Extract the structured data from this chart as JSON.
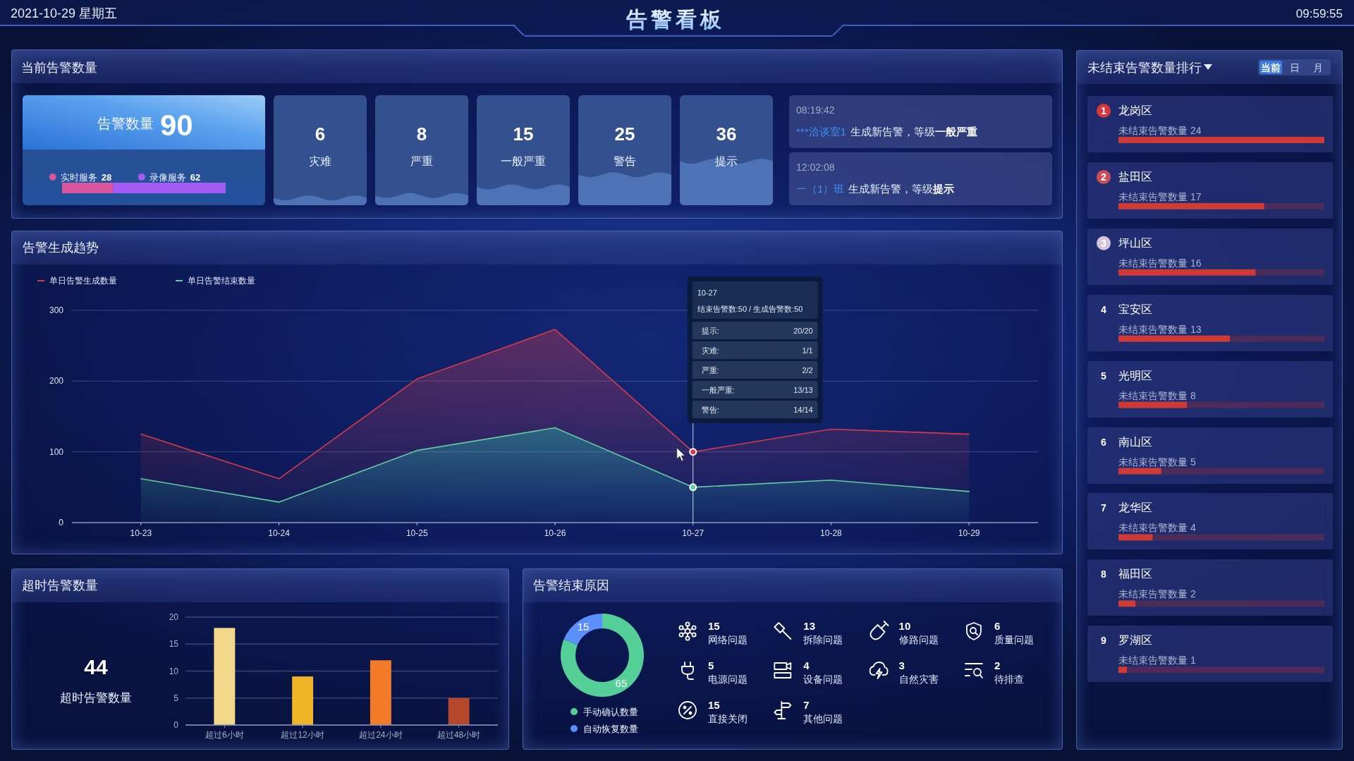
{
  "chart_data": [
    {
      "type": "other",
      "title": "告警看板",
      "annotations": [
        "2021-10-29 星期五",
        "09:59:55"
      ]
    },
    {
      "type": "bar",
      "title": "当前告警数量",
      "subtitle": "告警数量",
      "orientation": "horizontal",
      "stacked": true,
      "categories": [
        null
      ],
      "series": [
        {
          "name": "实时服务",
          "color": "#d9569f",
          "values": [
            28
          ],
          "value_labels": [
            "28"
          ]
        },
        {
          "name": "录像服务",
          "color": "#a35cf3",
          "values": [
            62
          ],
          "value_labels": [
            "62"
          ]
        }
      ],
      "totals": [
        "90"
      ],
      "tick_labels": false,
      "legend": "top"
    },
    {
      "type": "other",
      "categories": [
        "灾难",
        "严重",
        "一般严重",
        "警告",
        "提示"
      ],
      "values": [
        6,
        8,
        15,
        25,
        36
      ],
      "data_labels": true
    },
    {
      "type": "other",
      "annotations": [
        "08:19:42",
        "***洽谈室1",
        "生成新告警，等级",
        "一般严重",
        "12:02:08",
        "一（1）班",
        "生成新告警，等级",
        "提示"
      ]
    },
    {
      "type": "area",
      "title": "告警生成趋势",
      "stacked": true,
      "categories": [
        "10-23",
        "10-24",
        "10-25",
        "10-26",
        "10-27",
        "10-28",
        "10-29"
      ],
      "series": [
        {
          "name": "单日告警结束数量",
          "color": "#5fd0a6",
          "values": [
            62,
            29,
            102,
            134,
            50,
            60,
            44
          ]
        },
        {
          "name": "单日告警生成数量",
          "color": "#d23c4c",
          "values": [
            63,
            33,
            101,
            139,
            50,
            72,
            81
          ]
        }
      ],
      "ylim": [
        0,
        300
      ],
      "yticks": [
        0,
        100,
        200,
        300
      ],
      "grid": "y",
      "legend": "top left",
      "ref_lines": [
        {
          "axis": "x",
          "value": "10-27",
          "color": "#c9d2e6"
        }
      ],
      "annotations": [
        "10-27",
        "结束告警数:50 / 生成告警数:50",
        "提示:",
        "20/20",
        "灾难:",
        "1/1",
        "严重:",
        "2/2",
        "一般严重:",
        "13/13",
        "警告:",
        "14/14"
      ]
    },
    {
      "type": "bar",
      "title": "超时告警数量",
      "categories": [
        "超过6小时",
        "超过12小时",
        "超过24小时",
        "超过48小时"
      ],
      "values": [
        18,
        9,
        12,
        5
      ],
      "colors": [
        "#f3d78a",
        "#f0b429",
        "#f37a28",
        "#b5472a"
      ],
      "ylim": [
        0,
        20
      ],
      "yticks": [
        0,
        5,
        10,
        15,
        20
      ],
      "grid": "y",
      "annotations": [
        "44",
        "超时告警数量"
      ]
    },
    {
      "type": "donut",
      "title": "告警结束原因",
      "categories": [
        "手动确认数量",
        "自动恢复数量"
      ],
      "values": [
        65,
        15
      ],
      "colors": [
        "#55cf98",
        "#5b8ff9"
      ],
      "data_labels": true,
      "legend": "bottom"
    },
    {
      "type": "other",
      "categories": [
        "网络问题",
        "拆除问题",
        "修路问题",
        "质量问题",
        "电源问题",
        "设备问题",
        "自然灾害",
        "待排查",
        "直接关闭",
        "其他问题"
      ],
      "values": [
        15,
        13,
        10,
        6,
        5,
        4,
        3,
        2,
        15,
        7
      ],
      "data_labels": true
    },
    {
      "type": "bar",
      "title": "未结束告警数量排行",
      "orientation": "horizontal",
      "stacked": true,
      "categories": [
        "龙岗区",
        "盐田区",
        "坪山区",
        "宝安区",
        "光明区",
        "南山区",
        "龙华区",
        "福田区",
        "罗湖区"
      ],
      "series": [
        {
          "color": "#d03a36",
          "values": [
            24,
            17,
            16,
            13,
            8,
            5,
            4,
            2,
            1
          ],
          "value_labels": [
            "未结束告警数量 24",
            "未结束告警数量 17",
            "未结束告警数量 16",
            "未结束告警数量 13",
            "未结束告警数量 8",
            "未结束告警数量 5",
            "未结束告警数量 4",
            "未结束告警数量 2",
            "未结束告警数量 1"
          ]
        },
        {
          "color": "#4b2c58",
          "values": [
            0,
            7,
            8,
            11,
            16,
            19,
            20,
            22,
            23
          ]
        }
      ],
      "tick_labels": false,
      "annotations": [
        "当前",
        "日",
        "月",
        "1",
        "2",
        "3",
        "4",
        "5",
        "6",
        "7",
        "8",
        "9"
      ]
    }
  ]
}
